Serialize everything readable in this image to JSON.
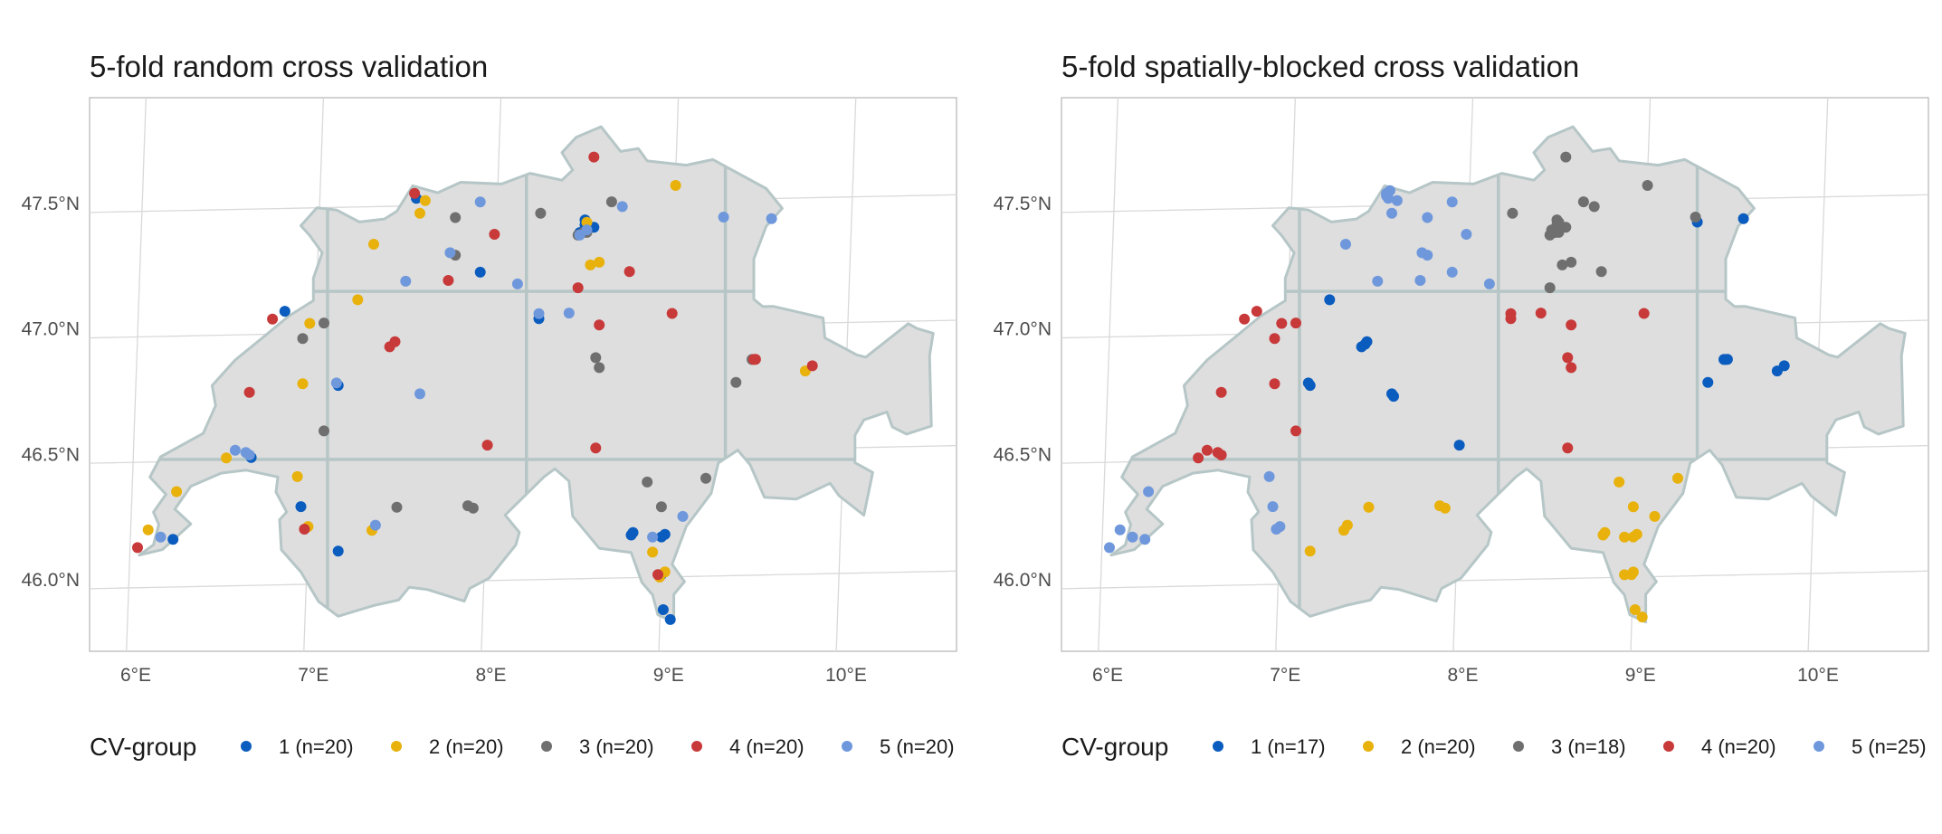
{
  "figure": {
    "lon_ticks": [
      "6°E",
      "7°E",
      "8°E",
      "9°E",
      "10°E"
    ],
    "lat_ticks": [
      "46.0°N",
      "46.5°N",
      "47.0°N",
      "47.5°N"
    ],
    "legend_title": "CV-group",
    "colors": [
      "#0a5cbe",
      "#e8b10c",
      "#6f6f6f",
      "#c8393a",
      "#6f98dc"
    ],
    "block_lines": {
      "lon": [
        7.08,
        8.2,
        9.32
      ],
      "lat": [
        46.48,
        47.15
      ]
    }
  },
  "panels": [
    {
      "title": "5-fold random cross validation",
      "legend": [
        "1 (n=20)",
        "2 (n=20)",
        "3 (n=20)",
        "4 (n=20)",
        "5 (n=20)"
      ],
      "points": [
        {
          "lon": 6.84,
          "lat": 47.09,
          "g": 1
        },
        {
          "lon": 6.65,
          "lat": 46.51,
          "g": 1
        },
        {
          "lon": 6.21,
          "lat": 46.19,
          "g": 1
        },
        {
          "lon": 6.93,
          "lat": 46.31,
          "g": 1
        },
        {
          "lon": 7.14,
          "lat": 46.79,
          "g": 1
        },
        {
          "lon": 7.14,
          "lat": 46.13,
          "g": 1
        },
        {
          "lon": 7.58,
          "lat": 47.53,
          "g": 1
        },
        {
          "lon": 7.94,
          "lat": 47.23,
          "g": 1
        },
        {
          "lon": 8.27,
          "lat": 47.04,
          "g": 1
        },
        {
          "lon": 8.53,
          "lat": 47.41,
          "g": 1
        },
        {
          "lon": 8.53,
          "lat": 47.43,
          "g": 1
        },
        {
          "lon": 8.58,
          "lat": 47.4,
          "g": 1
        },
        {
          "lon": 8.5,
          "lat": 47.38,
          "g": 1
        },
        {
          "lon": 8.79,
          "lat": 46.17,
          "g": 1
        },
        {
          "lon": 8.8,
          "lat": 46.18,
          "g": 1
        },
        {
          "lon": 8.96,
          "lat": 46.01,
          "g": 1
        },
        {
          "lon": 8.98,
          "lat": 46.17,
          "g": 1
        },
        {
          "lon": 8.96,
          "lat": 46.16,
          "g": 1
        },
        {
          "lon": 8.97,
          "lat": 45.87,
          "g": 1
        },
        {
          "lon": 9.01,
          "lat": 45.83,
          "g": 1
        },
        {
          "lon": 6.07,
          "lat": 46.23,
          "g": 2
        },
        {
          "lon": 6.23,
          "lat": 46.38,
          "g": 2
        },
        {
          "lon": 6.51,
          "lat": 46.51,
          "g": 2
        },
        {
          "lon": 6.91,
          "lat": 46.43,
          "g": 2
        },
        {
          "lon": 6.94,
          "lat": 46.8,
          "g": 2
        },
        {
          "lon": 6.97,
          "lat": 46.23,
          "g": 2
        },
        {
          "lon": 6.98,
          "lat": 47.04,
          "g": 2
        },
        {
          "lon": 7.25,
          "lat": 47.13,
          "g": 2
        },
        {
          "lon": 7.34,
          "lat": 47.35,
          "g": 2
        },
        {
          "lon": 7.33,
          "lat": 46.21,
          "g": 2
        },
        {
          "lon": 7.6,
          "lat": 47.47,
          "g": 2
        },
        {
          "lon": 7.63,
          "lat": 47.52,
          "g": 2
        },
        {
          "lon": 8.56,
          "lat": 47.25,
          "g": 2
        },
        {
          "lon": 8.61,
          "lat": 47.26,
          "g": 2
        },
        {
          "lon": 8.54,
          "lat": 47.42,
          "g": 2
        },
        {
          "lon": 9.04,
          "lat": 47.56,
          "g": 2
        },
        {
          "lon": 8.91,
          "lat": 46.1,
          "g": 2
        },
        {
          "lon": 8.95,
          "lat": 46.0,
          "g": 2
        },
        {
          "lon": 8.98,
          "lat": 46.02,
          "g": 2
        },
        {
          "lon": 9.77,
          "lat": 46.81,
          "g": 2
        },
        {
          "lon": 6.94,
          "lat": 46.98,
          "g": 3
        },
        {
          "lon": 7.06,
          "lat": 47.04,
          "g": 3
        },
        {
          "lon": 7.06,
          "lat": 46.61,
          "g": 3
        },
        {
          "lon": 7.47,
          "lat": 46.3,
          "g": 3
        },
        {
          "lon": 7.8,
          "lat": 47.45,
          "g": 3
        },
        {
          "lon": 7.8,
          "lat": 47.3,
          "g": 3
        },
        {
          "lon": 7.87,
          "lat": 46.3,
          "g": 3
        },
        {
          "lon": 7.9,
          "lat": 46.29,
          "g": 3
        },
        {
          "lon": 8.28,
          "lat": 47.46,
          "g": 3
        },
        {
          "lon": 8.49,
          "lat": 47.37,
          "g": 3
        },
        {
          "lon": 8.54,
          "lat": 47.38,
          "g": 3
        },
        {
          "lon": 8.52,
          "lat": 47.38,
          "g": 3
        },
        {
          "lon": 8.68,
          "lat": 47.5,
          "g": 3
        },
        {
          "lon": 8.59,
          "lat": 46.88,
          "g": 3
        },
        {
          "lon": 8.61,
          "lat": 46.84,
          "g": 3
        },
        {
          "lon": 8.88,
          "lat": 46.38,
          "g": 3
        },
        {
          "lon": 8.96,
          "lat": 46.28,
          "g": 3
        },
        {
          "lon": 9.21,
          "lat": 46.39,
          "g": 3
        },
        {
          "lon": 9.38,
          "lat": 46.77,
          "g": 3
        },
        {
          "lon": 9.47,
          "lat": 46.86,
          "g": 3
        },
        {
          "lon": 6.01,
          "lat": 46.16,
          "g": 4
        },
        {
          "lon": 6.64,
          "lat": 46.77,
          "g": 4
        },
        {
          "lon": 6.77,
          "lat": 47.06,
          "g": 4
        },
        {
          "lon": 6.95,
          "lat": 46.22,
          "g": 4
        },
        {
          "lon": 7.43,
          "lat": 46.94,
          "g": 4
        },
        {
          "lon": 7.46,
          "lat": 46.96,
          "g": 4
        },
        {
          "lon": 7.57,
          "lat": 47.55,
          "g": 4
        },
        {
          "lon": 7.76,
          "lat": 47.2,
          "g": 4
        },
        {
          "lon": 7.98,
          "lat": 46.54,
          "g": 4
        },
        {
          "lon": 8.02,
          "lat": 47.38,
          "g": 4
        },
        {
          "lon": 8.49,
          "lat": 47.16,
          "g": 4
        },
        {
          "lon": 8.58,
          "lat": 47.68,
          "g": 4
        },
        {
          "lon": 8.61,
          "lat": 47.01,
          "g": 4
        },
        {
          "lon": 8.59,
          "lat": 46.52,
          "g": 4
        },
        {
          "lon": 8.78,
          "lat": 47.22,
          "g": 4
        },
        {
          "lon": 9.02,
          "lat": 47.05,
          "g": 4
        },
        {
          "lon": 8.94,
          "lat": 46.01,
          "g": 4
        },
        {
          "lon": 9.49,
          "lat": 46.86,
          "g": 4
        },
        {
          "lon": 9.81,
          "lat": 46.83,
          "g": 4
        },
        {
          "lon": 9.48,
          "lat": 46.86,
          "g": 4
        },
        {
          "lon": 6.14,
          "lat": 46.2,
          "g": 5
        },
        {
          "lon": 6.56,
          "lat": 46.54,
          "g": 5
        },
        {
          "lon": 6.62,
          "lat": 46.53,
          "g": 5
        },
        {
          "lon": 6.64,
          "lat": 46.52,
          "g": 5
        },
        {
          "lon": 7.13,
          "lat": 46.8,
          "g": 5
        },
        {
          "lon": 7.35,
          "lat": 46.23,
          "g": 5
        },
        {
          "lon": 7.52,
          "lat": 47.2,
          "g": 5
        },
        {
          "lon": 7.6,
          "lat": 46.75,
          "g": 5
        },
        {
          "lon": 7.77,
          "lat": 47.31,
          "g": 5
        },
        {
          "lon": 7.94,
          "lat": 47.51,
          "g": 5
        },
        {
          "lon": 8.15,
          "lat": 47.18,
          "g": 5
        },
        {
          "lon": 8.27,
          "lat": 47.06,
          "g": 5
        },
        {
          "lon": 8.44,
          "lat": 47.06,
          "g": 5
        },
        {
          "lon": 8.5,
          "lat": 47.37,
          "g": 5
        },
        {
          "lon": 8.54,
          "lat": 47.39,
          "g": 5
        },
        {
          "lon": 8.74,
          "lat": 47.48,
          "g": 5
        },
        {
          "lon": 8.91,
          "lat": 46.16,
          "g": 5
        },
        {
          "lon": 9.08,
          "lat": 46.24,
          "g": 5
        },
        {
          "lon": 9.31,
          "lat": 47.43,
          "g": 5
        },
        {
          "lon": 9.58,
          "lat": 47.42,
          "g": 5
        }
      ]
    },
    {
      "title": "5-fold spatially-blocked cross validation",
      "legend": [
        "1 (n=17)",
        "2 (n=20)",
        "3 (n=18)",
        "4 (n=20)",
        "5 (n=25)"
      ],
      "points": [
        {
          "lon": 7.25,
          "lat": 47.13,
          "g": 1
        },
        {
          "lon": 7.43,
          "lat": 46.94,
          "g": 1
        },
        {
          "lon": 7.45,
          "lat": 46.95,
          "g": 1
        },
        {
          "lon": 7.46,
          "lat": 46.96,
          "g": 1
        },
        {
          "lon": 7.13,
          "lat": 46.8,
          "g": 1
        },
        {
          "lon": 7.14,
          "lat": 46.79,
          "g": 1
        },
        {
          "lon": 7.6,
          "lat": 46.75,
          "g": 1
        },
        {
          "lon": 7.61,
          "lat": 46.74,
          "g": 1
        },
        {
          "lon": 7.98,
          "lat": 46.54,
          "g": 1
        },
        {
          "lon": 9.32,
          "lat": 47.41,
          "g": 1
        },
        {
          "lon": 9.58,
          "lat": 47.42,
          "g": 1
        },
        {
          "lon": 9.38,
          "lat": 46.77,
          "g": 1
        },
        {
          "lon": 9.47,
          "lat": 46.86,
          "g": 1
        },
        {
          "lon": 9.49,
          "lat": 46.86,
          "g": 1
        },
        {
          "lon": 9.77,
          "lat": 46.81,
          "g": 1
        },
        {
          "lon": 9.81,
          "lat": 46.83,
          "g": 1
        },
        {
          "lon": 9.48,
          "lat": 46.86,
          "g": 1
        },
        {
          "lon": 7.14,
          "lat": 46.13,
          "g": 2
        },
        {
          "lon": 7.33,
          "lat": 46.21,
          "g": 2
        },
        {
          "lon": 7.35,
          "lat": 46.23,
          "g": 2
        },
        {
          "lon": 7.47,
          "lat": 46.3,
          "g": 2
        },
        {
          "lon": 7.87,
          "lat": 46.3,
          "g": 2
        },
        {
          "lon": 7.9,
          "lat": 46.29,
          "g": 2
        },
        {
          "lon": 8.79,
          "lat": 46.17,
          "g": 2
        },
        {
          "lon": 8.8,
          "lat": 46.18,
          "g": 2
        },
        {
          "lon": 8.88,
          "lat": 46.38,
          "g": 2
        },
        {
          "lon": 8.91,
          "lat": 46.16,
          "g": 2
        },
        {
          "lon": 8.96,
          "lat": 46.28,
          "g": 2
        },
        {
          "lon": 8.98,
          "lat": 46.17,
          "g": 2
        },
        {
          "lon": 8.96,
          "lat": 46.16,
          "g": 2
        },
        {
          "lon": 8.91,
          "lat": 46.01,
          "g": 2
        },
        {
          "lon": 8.95,
          "lat": 46.01,
          "g": 2
        },
        {
          "lon": 8.97,
          "lat": 45.87,
          "g": 2
        },
        {
          "lon": 9.01,
          "lat": 45.84,
          "g": 2
        },
        {
          "lon": 9.08,
          "lat": 46.24,
          "g": 2
        },
        {
          "lon": 9.21,
          "lat": 46.39,
          "g": 2
        },
        {
          "lon": 8.96,
          "lat": 46.02,
          "g": 2
        },
        {
          "lon": 8.28,
          "lat": 47.46,
          "g": 3
        },
        {
          "lon": 8.49,
          "lat": 47.37,
          "g": 3
        },
        {
          "lon": 8.5,
          "lat": 47.39,
          "g": 3
        },
        {
          "lon": 8.52,
          "lat": 47.38,
          "g": 3
        },
        {
          "lon": 8.53,
          "lat": 47.41,
          "g": 3
        },
        {
          "lon": 8.53,
          "lat": 47.43,
          "g": 3
        },
        {
          "lon": 8.54,
          "lat": 47.38,
          "g": 3
        },
        {
          "lon": 8.58,
          "lat": 47.4,
          "g": 3
        },
        {
          "lon": 8.58,
          "lat": 47.68,
          "g": 3
        },
        {
          "lon": 8.68,
          "lat": 47.5,
          "g": 3
        },
        {
          "lon": 8.74,
          "lat": 47.48,
          "g": 3
        },
        {
          "lon": 8.56,
          "lat": 47.25,
          "g": 3
        },
        {
          "lon": 8.61,
          "lat": 47.26,
          "g": 3
        },
        {
          "lon": 8.49,
          "lat": 47.16,
          "g": 3
        },
        {
          "lon": 8.78,
          "lat": 47.22,
          "g": 3
        },
        {
          "lon": 9.04,
          "lat": 47.56,
          "g": 3
        },
        {
          "lon": 9.31,
          "lat": 47.43,
          "g": 3
        },
        {
          "lon": 8.54,
          "lat": 47.42,
          "g": 3
        },
        {
          "lon": 6.51,
          "lat": 46.51,
          "g": 4
        },
        {
          "lon": 6.56,
          "lat": 46.54,
          "g": 4
        },
        {
          "lon": 6.62,
          "lat": 46.53,
          "g": 4
        },
        {
          "lon": 6.64,
          "lat": 46.52,
          "g": 4
        },
        {
          "lon": 6.64,
          "lat": 46.77,
          "g": 4
        },
        {
          "lon": 6.77,
          "lat": 47.06,
          "g": 4
        },
        {
          "lon": 6.84,
          "lat": 47.09,
          "g": 4
        },
        {
          "lon": 6.94,
          "lat": 46.98,
          "g": 4
        },
        {
          "lon": 6.98,
          "lat": 47.04,
          "g": 4
        },
        {
          "lon": 7.06,
          "lat": 47.04,
          "g": 4
        },
        {
          "lon": 6.94,
          "lat": 46.8,
          "g": 4
        },
        {
          "lon": 7.06,
          "lat": 46.61,
          "g": 4
        },
        {
          "lon": 8.27,
          "lat": 47.04,
          "g": 4
        },
        {
          "lon": 8.27,
          "lat": 47.06,
          "g": 4
        },
        {
          "lon": 8.44,
          "lat": 47.06,
          "g": 4
        },
        {
          "lon": 8.61,
          "lat": 47.01,
          "g": 4
        },
        {
          "lon": 8.59,
          "lat": 46.88,
          "g": 4
        },
        {
          "lon": 8.61,
          "lat": 46.84,
          "g": 4
        },
        {
          "lon": 8.59,
          "lat": 46.52,
          "g": 4
        },
        {
          "lon": 9.02,
          "lat": 47.05,
          "g": 4
        },
        {
          "lon": 6.01,
          "lat": 46.16,
          "g": 5
        },
        {
          "lon": 6.07,
          "lat": 46.23,
          "g": 5
        },
        {
          "lon": 6.14,
          "lat": 46.2,
          "g": 5
        },
        {
          "lon": 6.21,
          "lat": 46.19,
          "g": 5
        },
        {
          "lon": 6.23,
          "lat": 46.38,
          "g": 5
        },
        {
          "lon": 6.91,
          "lat": 46.43,
          "g": 5
        },
        {
          "lon": 6.93,
          "lat": 46.31,
          "g": 5
        },
        {
          "lon": 6.95,
          "lat": 46.22,
          "g": 5
        },
        {
          "lon": 6.97,
          "lat": 46.23,
          "g": 5
        },
        {
          "lon": 7.34,
          "lat": 47.35,
          "g": 5
        },
        {
          "lon": 7.52,
          "lat": 47.2,
          "g": 5
        },
        {
          "lon": 7.57,
          "lat": 47.55,
          "g": 5
        },
        {
          "lon": 7.58,
          "lat": 47.53,
          "g": 5
        },
        {
          "lon": 7.6,
          "lat": 47.47,
          "g": 5
        },
        {
          "lon": 7.63,
          "lat": 47.52,
          "g": 5
        },
        {
          "lon": 7.57,
          "lat": 47.54,
          "g": 5
        },
        {
          "lon": 7.76,
          "lat": 47.2,
          "g": 5
        },
        {
          "lon": 7.77,
          "lat": 47.31,
          "g": 5
        },
        {
          "lon": 7.8,
          "lat": 47.45,
          "g": 5
        },
        {
          "lon": 7.8,
          "lat": 47.3,
          "g": 5
        },
        {
          "lon": 7.94,
          "lat": 47.51,
          "g": 5
        },
        {
          "lon": 7.94,
          "lat": 47.23,
          "g": 5
        },
        {
          "lon": 8.02,
          "lat": 47.38,
          "g": 5
        },
        {
          "lon": 8.15,
          "lat": 47.18,
          "g": 5
        },
        {
          "lon": 7.59,
          "lat": 47.56,
          "g": 5
        }
      ]
    }
  ]
}
